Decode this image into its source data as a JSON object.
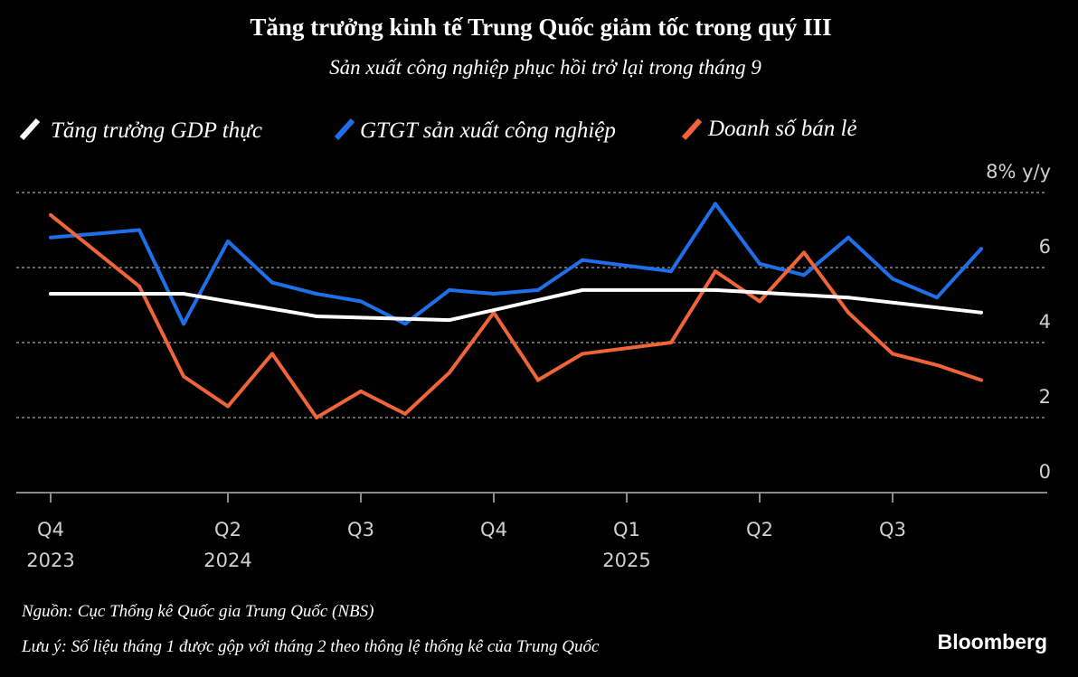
{
  "chart_data": {
    "type": "line",
    "title": "Tăng trưởng kinh tế Trung Quốc giảm tốc trong quý III",
    "subtitle": "Sản xuất công nghiệp phục hồi trở lại trong tháng 9",
    "ylabel_top": "8% y/y",
    "ylim": [
      0,
      8
    ],
    "yticks": [
      {
        "value": 8,
        "label": "8% y/y"
      },
      {
        "value": 6,
        "label": "6"
      },
      {
        "value": 4,
        "label": "4"
      },
      {
        "value": 2,
        "label": "2"
      },
      {
        "value": 0,
        "label": "0"
      }
    ],
    "xticks": [
      {
        "month": "2023-12",
        "label": "Q4",
        "year": "2023"
      },
      {
        "month": "2024-04",
        "label": "Q2",
        "year": "2024"
      },
      {
        "month": "2024-07",
        "label": "Q3",
        "year": ""
      },
      {
        "month": "2024-10",
        "label": "Q4",
        "year": ""
      },
      {
        "month": "2025-01",
        "label": "Q1",
        "year": "2025"
      },
      {
        "month": "2025-04",
        "label": "Q2",
        "year": ""
      },
      {
        "month": "2025-07",
        "label": "Q3",
        "year": ""
      }
    ],
    "grid": true,
    "legend_position": "top-left",
    "series": [
      {
        "name": "Tăng trưởng GDP thực",
        "color": "#ffffff",
        "x": [
          "2023-12",
          "2024-03",
          "2024-06",
          "2024-09",
          "2024-12",
          "2025-03",
          "2025-06",
          "2025-09"
        ],
        "values": [
          5.3,
          5.3,
          4.7,
          4.6,
          5.4,
          5.4,
          5.2,
          4.8
        ]
      },
      {
        "name": "GTGT sản xuất công nghiệp",
        "color": "#1f6fe8",
        "x": [
          "2023-12",
          "2024-02",
          "2024-03",
          "2024-04",
          "2024-05",
          "2024-06",
          "2024-07",
          "2024-08",
          "2024-09",
          "2024-10",
          "2024-11",
          "2024-12",
          "2025-02",
          "2025-03",
          "2025-04",
          "2025-05",
          "2025-06",
          "2025-07",
          "2025-08",
          "2025-09"
        ],
        "values": [
          6.8,
          7.0,
          4.5,
          6.7,
          5.6,
          5.3,
          5.1,
          4.5,
          5.4,
          5.3,
          5.4,
          6.2,
          5.9,
          7.7,
          6.1,
          5.8,
          6.8,
          5.7,
          5.2,
          6.5
        ]
      },
      {
        "name": "Doanh số bán lẻ",
        "color": "#f0643a",
        "x": [
          "2023-12",
          "2024-02",
          "2024-03",
          "2024-04",
          "2024-05",
          "2024-06",
          "2024-07",
          "2024-08",
          "2024-09",
          "2024-10",
          "2024-11",
          "2024-12",
          "2025-02",
          "2025-03",
          "2025-04",
          "2025-05",
          "2025-06",
          "2025-07",
          "2025-08",
          "2025-09"
        ],
        "values": [
          7.4,
          5.5,
          3.1,
          2.3,
          3.7,
          2.0,
          2.7,
          2.1,
          3.2,
          4.8,
          3.0,
          3.7,
          4.0,
          5.9,
          5.1,
          6.4,
          4.8,
          3.7,
          3.4,
          3.0
        ]
      }
    ]
  },
  "footer": {
    "source": "Nguồn: Cục Thống kê Quốc gia Trung Quốc (NBS)",
    "note": "Lưu ý: Số liệu tháng 1 được gộp với tháng 2 theo thông lệ thống kê của Trung Quốc",
    "brand": "Bloomberg"
  }
}
